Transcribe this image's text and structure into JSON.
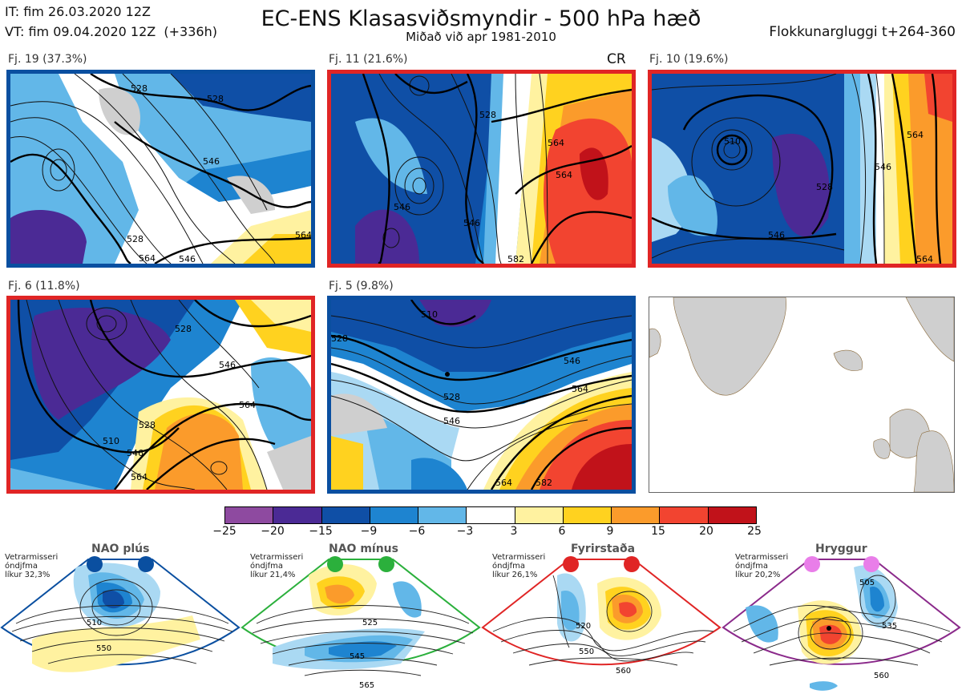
{
  "header": {
    "it_line": "IT: fim 26.03.2020 12Z",
    "vt_line": "VT: fim 09.04.2020 12Z  (+336h)",
    "title": "EC-ENS Klasasviðsmyndir - 500 hPa hæð",
    "subtitle": "Miðað við apr 1981-2010",
    "window": "Flokkunargluggi t+264-360"
  },
  "panels": [
    {
      "label": "Fj. 19 (37.3%)",
      "border_color": "#0a4fa0",
      "contours": [
        "528",
        "528",
        "546",
        "528",
        "564",
        "546",
        "564"
      ],
      "extra": ""
    },
    {
      "label": "Fj. 11 (21.6%)",
      "border_color": "#e02525",
      "contours": [
        "528",
        "546",
        "564",
        "546",
        "564",
        "582"
      ],
      "extra": "CR"
    },
    {
      "label": "Fj. 10 (19.6%)",
      "border_color": "#e02525",
      "contours": [
        "510",
        "528",
        "546",
        "546",
        "564",
        "564"
      ],
      "extra": ""
    },
    {
      "label": "Fj. 6 (11.8%)",
      "border_color": "#e02525",
      "contours": [
        "510",
        "528",
        "546",
        "564",
        "546",
        "564",
        "528"
      ],
      "extra": ""
    },
    {
      "label": "Fj. 5 (9.8%)",
      "border_color": "#0a4fa0",
      "contours": [
        "510",
        "528",
        "528",
        "546",
        "546",
        "564",
        "564",
        "582"
      ],
      "extra": ""
    }
  ],
  "colorbar": {
    "ticks": [
      "−25",
      "−20",
      "−15",
      "−9",
      "−6",
      "−3",
      "3",
      "6",
      "9",
      "15",
      "20",
      "25"
    ],
    "colors": [
      "#8e4aa0",
      "#4b2a95",
      "#0f4fa6",
      "#1e84d0",
      "#62b7e8",
      "#aad9f3",
      "#ffffff",
      "#fff2a0",
      "#ffd21f",
      "#fb9b2b",
      "#f24430",
      "#c1121a"
    ]
  },
  "regimes": [
    {
      "title": "NAO plús",
      "text": "Vetrarmisseri\nóndjfma\nlíkur 32,3%",
      "dot_color": "#0a4fa0",
      "edge_color": "#0a4fa0",
      "contours": [
        "510",
        "550"
      ]
    },
    {
      "title": "NAO mínus",
      "text": "Vetrarmisseri\nóndjfma\nlíkur 21,4%",
      "dot_color": "#2bb03c",
      "edge_color": "#2bb03c",
      "contours": [
        "525",
        "545",
        "565"
      ]
    },
    {
      "title": "Fyrirstaða",
      "text": "Vetrarmisseri\nóndjfma\nlíkur 26,1%",
      "dot_color": "#e02525",
      "edge_color": "#e02525",
      "contours": [
        "520",
        "550",
        "560"
      ]
    },
    {
      "title": "Hryggur",
      "text": "Vetrarmisseri\nóndjfma\nlíkur 20,2%",
      "dot_color": "#e97ee9",
      "edge_color": "#8b2a8b",
      "contours": [
        "505",
        "535",
        "560"
      ]
    }
  ]
}
